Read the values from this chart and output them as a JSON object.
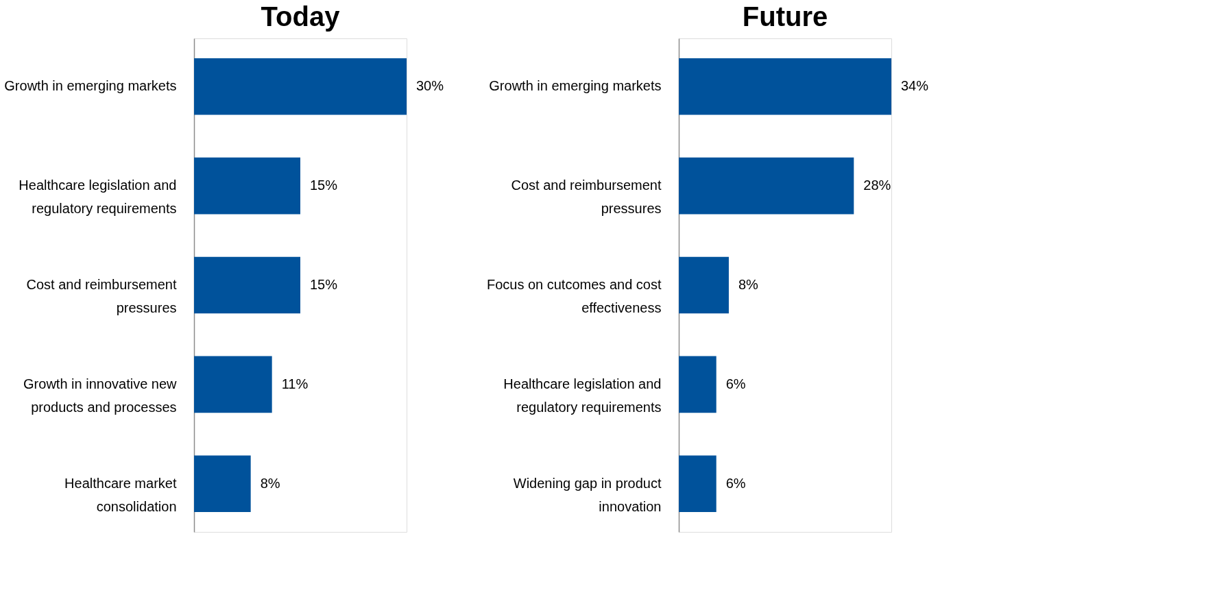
{
  "chart_data": [
    {
      "type": "bar",
      "orientation": "horizontal",
      "title": "Today",
      "categories": [
        "Growth in emerging markets",
        "Healthcare legislation and\nregulatory requirements",
        "Cost and reimbursement\npressures",
        "Growth in innovative new\nproducts and processes",
        "Healthcare market\nconsolidation"
      ],
      "values": [
        30,
        15,
        15,
        11,
        8
      ],
      "color": "#00529b",
      "value_labels": [
        "30%",
        "15%",
        "15%",
        "11%",
        "8%"
      ]
    },
    {
      "type": "bar",
      "orientation": "horizontal",
      "title": "Future",
      "categories": [
        "Growth in emerging markets",
        "Cost and reimbursement\npressures",
        "Focus on cutcomes and cost\neffectiveness",
        "Healthcare legislation and\nregulatory requirements",
        "Widening gap in product\ninnovation"
      ],
      "values": [
        34,
        28,
        8,
        6,
        6
      ],
      "color": "#00529b",
      "value_labels": [
        "34%",
        "28%",
        "8%",
        "6%",
        "6%"
      ]
    }
  ]
}
